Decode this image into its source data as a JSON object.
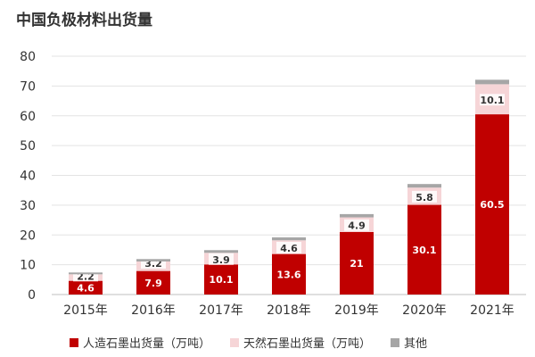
{
  "chart_data": {
    "type": "bar",
    "stacked": true,
    "title": "中国负极材料出货量",
    "categories": [
      "2015年",
      "2016年",
      "2017年",
      "2018年",
      "2019年",
      "2020年",
      "2021年"
    ],
    "series": [
      {
        "name": "人造石墨出货量（万吨）",
        "values": [
          4.6,
          7.9,
          10.1,
          13.6,
          21,
          30.1,
          60.5
        ],
        "color": "#C00000",
        "label_color": "#ffffff"
      },
      {
        "name": "天然石墨出货量（万吨）",
        "values": [
          2.2,
          3.2,
          3.9,
          4.6,
          4.9,
          5.8,
          10.1
        ],
        "color": "#F6D5D7",
        "label_color": "#333333"
      },
      {
        "name": "其他",
        "values": [
          0.6,
          0.8,
          0.9,
          1.0,
          1.1,
          1.2,
          1.5
        ],
        "color": "#A6A6A6",
        "label_color": "#333333"
      }
    ],
    "ylim": [
      0,
      80
    ],
    "yticks": [
      0,
      10,
      20,
      30,
      40,
      50,
      60,
      70,
      80
    ],
    "grid": true,
    "legend": "bottom"
  }
}
